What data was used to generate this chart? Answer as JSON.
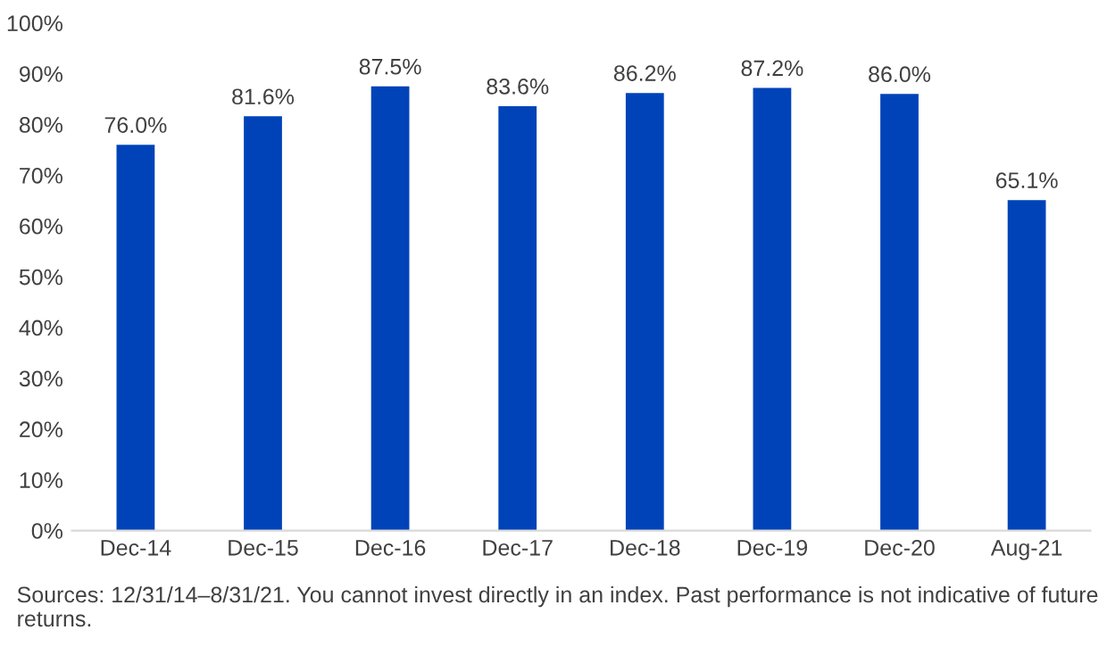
{
  "chart_data": {
    "type": "bar",
    "categories": [
      "Dec-14",
      "Dec-15",
      "Dec-16",
      "Dec-17",
      "Dec-18",
      "Dec-19",
      "Dec-20",
      "Aug-21"
    ],
    "values": [
      76.0,
      81.6,
      87.5,
      83.6,
      86.2,
      87.2,
      86.0,
      65.1
    ],
    "value_labels": [
      "76.0%",
      "81.6%",
      "87.5%",
      "83.6%",
      "86.2%",
      "87.2%",
      "86.0%",
      "65.1%"
    ],
    "color": "#0043b9",
    "ylim": [
      0,
      100
    ],
    "yticks": [
      {
        "value": 0,
        "label": "0%"
      },
      {
        "value": 10,
        "label": "10%"
      },
      {
        "value": 20,
        "label": "20%"
      },
      {
        "value": 30,
        "label": "30%"
      },
      {
        "value": 40,
        "label": "40%"
      },
      {
        "value": 50,
        "label": "50%"
      },
      {
        "value": 60,
        "label": "60%"
      },
      {
        "value": 70,
        "label": "70%"
      },
      {
        "value": 80,
        "label": "80%"
      },
      {
        "value": 90,
        "label": "90%"
      },
      {
        "value": 100,
        "label": "100%"
      }
    ],
    "grid": false,
    "annotations": [
      "Sources: 12/31/14–8/31/21. You cannot invest directly in an index. Past performance is not indicative of future returns."
    ]
  }
}
